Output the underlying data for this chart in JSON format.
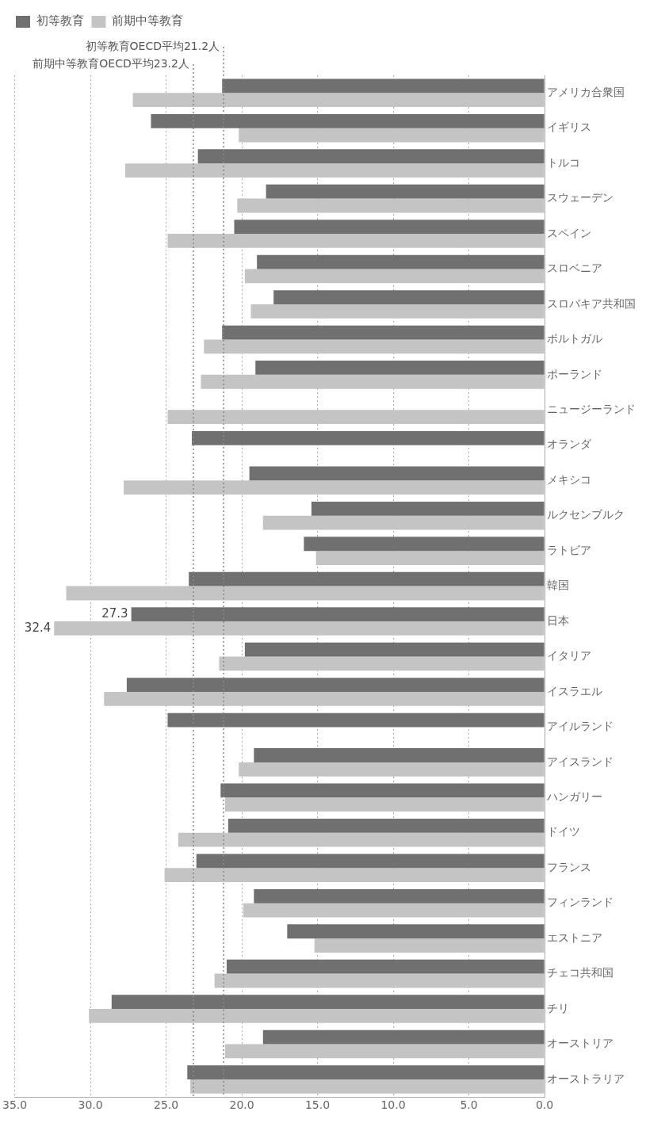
{
  "chart_data": {
    "type": "bar",
    "orientation": "horizontal",
    "categories": [
      "アメリカ合衆国",
      "イギリス",
      "トルコ",
      "スウェーデン",
      "スペイン",
      "スロベニア",
      "スロバキア共和国",
      "ポルトガル",
      "ポーランド",
      "ニュージーランド",
      "オランダ",
      "メキシコ",
      "ルクセンブルク",
      "ラトビア",
      "韓国",
      "日本",
      "イタリア",
      "イスラエル",
      "アイルランド",
      "アイスランド",
      "ハンガリー",
      "ドイツ",
      "フランス",
      "フィンランド",
      "エストニア",
      "チェコ共和国",
      "チリ",
      "オーストリア",
      "オーストラリア"
    ],
    "series": [
      {
        "name": "初等教育",
        "color": "#707070",
        "values": [
          21.3,
          26.0,
          22.9,
          18.4,
          20.5,
          19.0,
          17.9,
          21.3,
          19.1,
          null,
          23.3,
          19.5,
          15.4,
          15.9,
          23.5,
          27.3,
          19.8,
          27.6,
          24.9,
          19.2,
          21.4,
          20.9,
          23.0,
          19.2,
          17.0,
          21.0,
          28.6,
          18.6,
          23.6
        ],
        "value_labels": [
          null,
          null,
          null,
          null,
          null,
          null,
          null,
          null,
          null,
          null,
          null,
          null,
          null,
          null,
          null,
          "27.3",
          null,
          null,
          null,
          null,
          null,
          null,
          null,
          null,
          null,
          null,
          null,
          null,
          null
        ]
      },
      {
        "name": "前期中等教育",
        "color": "#c4c4c4",
        "values": [
          27.2,
          20.2,
          27.7,
          20.3,
          24.9,
          19.8,
          19.4,
          22.5,
          22.7,
          24.9,
          null,
          27.8,
          18.6,
          15.1,
          31.6,
          32.4,
          21.5,
          29.1,
          null,
          20.2,
          21.1,
          24.2,
          25.1,
          19.9,
          15.2,
          21.8,
          30.1,
          21.1,
          23.4
        ],
        "value_labels": [
          null,
          null,
          null,
          null,
          null,
          null,
          null,
          null,
          null,
          null,
          null,
          null,
          null,
          null,
          null,
          "32.4",
          null,
          null,
          null,
          null,
          null,
          null,
          null,
          null,
          null,
          null,
          null,
          null,
          null
        ]
      }
    ],
    "xlim": [
      35,
      0
    ],
    "xticks": [
      {
        "value": 35,
        "label": "35.0"
      },
      {
        "value": 30,
        "label": "30.0"
      },
      {
        "value": 25,
        "label": "25.0"
      },
      {
        "value": 20,
        "label": "20.0"
      },
      {
        "value": 15,
        "label": "15.0"
      },
      {
        "value": 10,
        "label": "10.0"
      },
      {
        "value": 5,
        "label": "5.0"
      },
      {
        "value": 0,
        "label": "0.0"
      }
    ],
    "ref_lines": [
      {
        "axis": "x",
        "value": 21.2,
        "label": "初等教育OECD平均21.2人",
        "line_style": "dotted",
        "color": "#888888"
      },
      {
        "axis": "x",
        "value": 23.2,
        "label": "前期中等教育OECD平均23.2人",
        "line_style": "dotted",
        "color": "#888888"
      }
    ],
    "grid": "x",
    "legend": "top left"
  }
}
